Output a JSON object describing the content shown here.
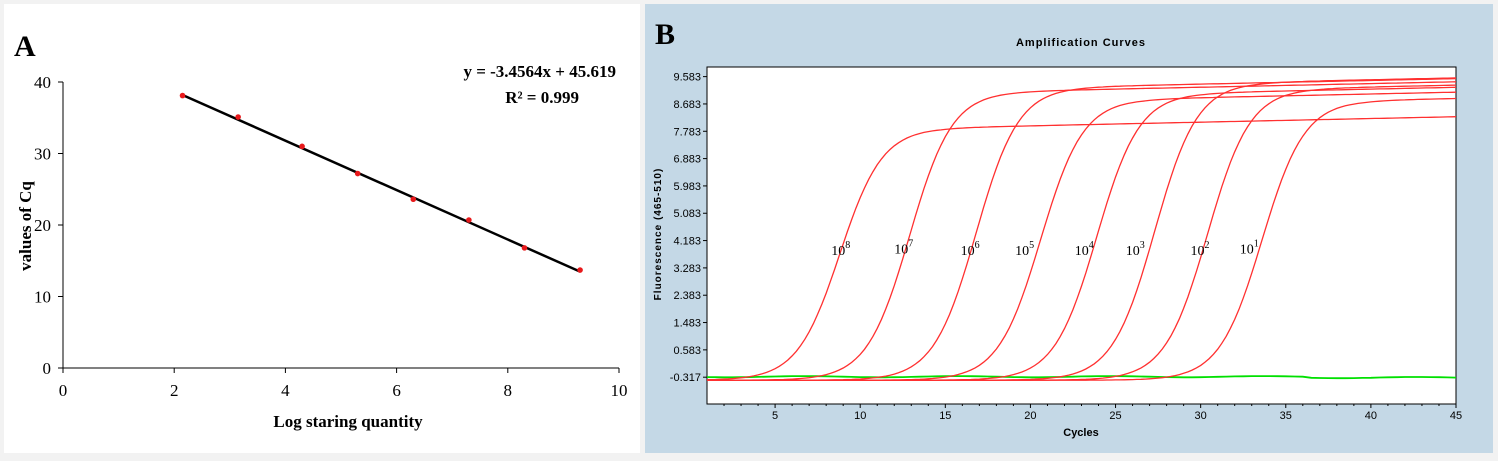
{
  "chart_data": [
    {
      "type": "scatter",
      "panel_label": "A",
      "xlabel": "Log staring quantity",
      "ylabel": "values of Cq",
      "xlim": [
        0,
        10
      ],
      "ylim": [
        0,
        40
      ],
      "xticks": [
        "0",
        "2",
        "4",
        "6",
        "8",
        "10"
      ],
      "yticks": [
        "0",
        "10",
        "20",
        "30",
        "40"
      ],
      "points": {
        "x": [
          2.15,
          3.15,
          4.3,
          5.3,
          6.3,
          7.3,
          8.3,
          9.3
        ],
        "y": [
          38.1,
          35.1,
          31.0,
          27.2,
          23.6,
          20.7,
          16.8,
          13.7
        ]
      },
      "trendline": {
        "x0": 2.15,
        "x1": 9.3,
        "slope": -3.4564,
        "intercept": 45.619
      },
      "equation": "y = -3.4564x + 45.619",
      "r_squared": "R² = 0.999",
      "colors": {
        "point": "#e8191b",
        "line": "#000000"
      }
    },
    {
      "type": "line",
      "panel_label": "B",
      "title": "Amplification Curves",
      "xlabel": "Cycles",
      "ylabel": "Fluorescence (465-510)",
      "xlim": [
        1,
        45
      ],
      "ylim": [
        -1.2,
        9.9
      ],
      "xticks": [
        "5",
        "10",
        "15",
        "20",
        "25",
        "30",
        "35",
        "40",
        "45"
      ],
      "yticks": [
        "9.583",
        "8.683",
        "7.783",
        "6.883",
        "5.983",
        "5.083",
        "4.183",
        "3.283",
        "2.383",
        "1.483",
        "0.583",
        "-0.317"
      ],
      "series": [
        {
          "name": "10⁸",
          "base": "10",
          "exp": "8",
          "midpoint": 8.8,
          "plateau": 7.9,
          "label_x": 8.3,
          "label_y": 3.7
        },
        {
          "name": "10⁷",
          "base": "10",
          "exp": "7",
          "midpoint": 12.9,
          "plateau": 9.1,
          "label_x": 12.0,
          "label_y": 3.75
        },
        {
          "name": "10⁶",
          "base": "10",
          "exp": "6",
          "midpoint": 16.8,
          "plateau": 9.25,
          "label_x": 15.9,
          "label_y": 3.7
        },
        {
          "name": "10⁵",
          "base": "10",
          "exp": "5",
          "midpoint": 20.6,
          "plateau": 8.85,
          "label_x": 19.1,
          "label_y": 3.7
        },
        {
          "name": "10⁴",
          "base": "10",
          "exp": "4",
          "midpoint": 23.9,
          "plateau": 9.05,
          "label_x": 22.6,
          "label_y": 3.7
        },
        {
          "name": "10³",
          "base": "10",
          "exp": "3",
          "midpoint": 27.3,
          "plateau": 9.4,
          "label_x": 25.6,
          "label_y": 3.7
        },
        {
          "name": "10²",
          "base": "10",
          "exp": "2",
          "midpoint": 30.4,
          "plateau": 9.2,
          "label_x": 29.4,
          "label_y": 3.7
        },
        {
          "name": "10¹",
          "base": "10",
          "exp": "1",
          "midpoint": 33.6,
          "plateau": 8.8,
          "label_x": 32.3,
          "label_y": 3.75
        }
      ],
      "baseline": -0.317,
      "negative_control_y": -0.3,
      "colors": {
        "curves": "#ff3030",
        "negative": "#00e000",
        "plot_bg": "#ffffff",
        "panel_bg": "#c4d8e6"
      }
    }
  ]
}
